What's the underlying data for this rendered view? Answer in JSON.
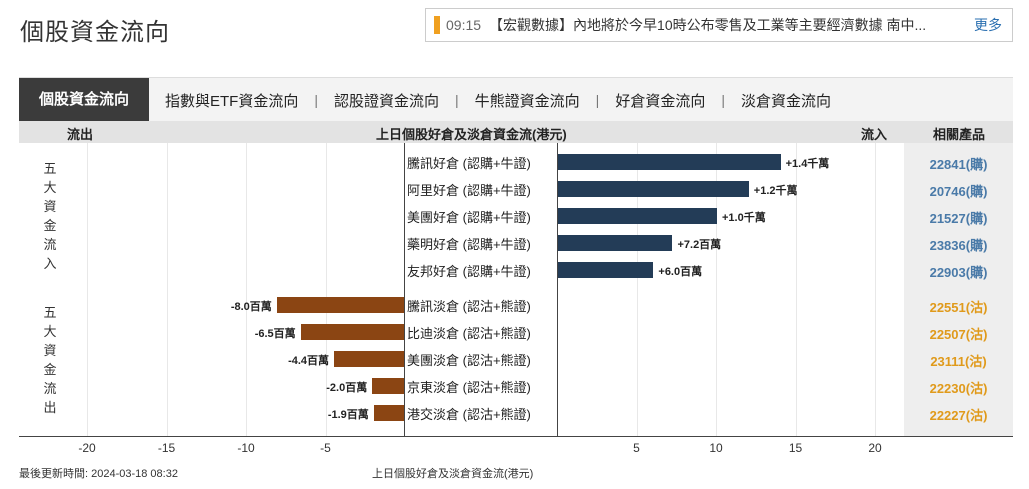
{
  "page_title": "個股資金流向",
  "news": {
    "time": "09:15",
    "text": "【宏觀數據】內地將於今早10時公布零售及工業等主要經濟數據 南中...",
    "more": "更多"
  },
  "tabs": [
    {
      "label": "個股資金流向",
      "active": true
    },
    {
      "label": "指數與ETF資金流向",
      "active": false
    },
    {
      "label": "認股證資金流向",
      "active": false
    },
    {
      "label": "牛熊證資金流向",
      "active": false
    },
    {
      "label": "好倉資金流向",
      "active": false
    },
    {
      "label": "淡倉資金流向",
      "active": false
    }
  ],
  "tab_separator": "|",
  "header": {
    "outflow": "流出",
    "title": "上日個股好倉及淡倉資金流(港元)",
    "inflow": "流入",
    "products": "相關產品"
  },
  "side_labels": {
    "inflow": [
      "五",
      "大",
      "資",
      "金",
      "流",
      "入"
    ],
    "outflow": [
      "五",
      "大",
      "資",
      "金",
      "流",
      "出"
    ]
  },
  "chart_data": {
    "type": "bar",
    "title": "上日個股好倉及淡倉資金流(港元)",
    "xlabel": "上日個股好倉及淡倉資金流(港元)",
    "unit": "百萬",
    "xlim": [
      -22,
      22
    ],
    "x_ticks": [
      -20,
      -15,
      -10,
      -5,
      5,
      10,
      15,
      20
    ],
    "inflow": [
      {
        "name": "騰訊好倉 (認購+牛證)",
        "value": 14.0,
        "label": "+1.4千萬",
        "product": "22841(購)"
      },
      {
        "name": "阿里好倉 (認購+牛證)",
        "value": 12.0,
        "label": "+1.2千萬",
        "product": "20746(購)"
      },
      {
        "name": "美團好倉 (認購+牛證)",
        "value": 10.0,
        "label": "+1.0千萬",
        "product": "21527(購)"
      },
      {
        "name": "藥明好倉 (認購+牛證)",
        "value": 7.2,
        "label": "+7.2百萬",
        "product": "23836(購)"
      },
      {
        "name": "友邦好倉 (認購+牛證)",
        "value": 6.0,
        "label": "+6.0百萬",
        "product": "22903(購)"
      }
    ],
    "outflow": [
      {
        "name": "騰訊淡倉 (認沽+熊證)",
        "value": -8.0,
        "label": "-8.0百萬",
        "product": "22551(沽)"
      },
      {
        "name": "比迪淡倉 (認沽+熊證)",
        "value": -6.5,
        "label": "-6.5百萬",
        "product": "22507(沽)"
      },
      {
        "name": "美團淡倉 (認沽+熊證)",
        "value": -4.4,
        "label": "-4.4百萬",
        "product": "23111(沽)"
      },
      {
        "name": "京東淡倉 (認沽+熊證)",
        "value": -2.0,
        "label": "-2.0百萬",
        "product": "22230(沽)"
      },
      {
        "name": "港交淡倉 (認沽+熊證)",
        "value": -1.9,
        "label": "-1.9百萬",
        "product": "22227(沽)"
      }
    ],
    "colors": {
      "inflow": "#233c57",
      "outflow": "#8b4513",
      "call_product": "#4a7aa8",
      "put_product": "#e09a1b"
    }
  },
  "footer": {
    "last_update": "最後更新時間: 2024-03-18 08:32",
    "caption": "上日個股好倉及淡倉資金流(港元)"
  }
}
